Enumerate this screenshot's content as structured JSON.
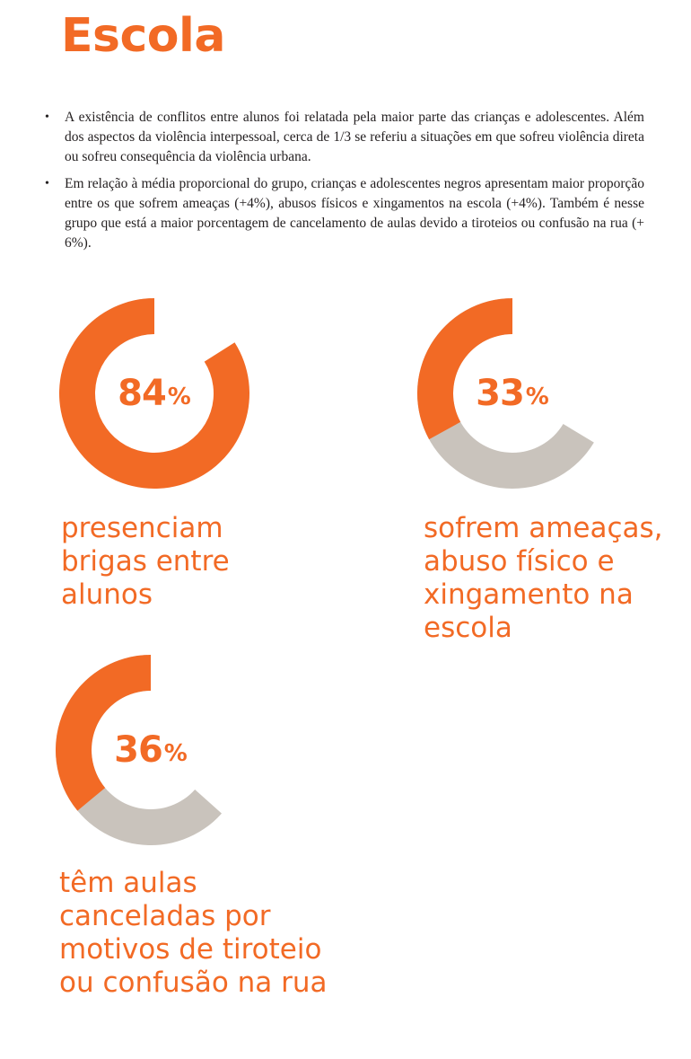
{
  "page": {
    "title": "Escola",
    "bullets": [
      "A existência de conflitos entre alunos foi relatada pela maior parte das crianças e adolescentes. Além dos aspectos da violência interpessoal, cerca de 1/3 se referiu a situações em que sofreu violência direta ou sofreu consequência da violência urbana.",
      "Em relação à média proporcional do grupo, crianças e adolescentes negros apresentam maior proporção entre os que sofrem ameaças (+4%), abusos físicos e xingamentos na escola (+4%). Também é nesse grupo que está a maior porcentagem de cancelamento de aulas devido a tiroteios ou confusão na rua (+ 6%)."
    ],
    "bullet_symbol": "•"
  },
  "colors": {
    "accent": "#f26a25",
    "track": "#c9c3bc",
    "text": "#231f20"
  },
  "chart_data": [
    {
      "type": "pie",
      "value": 84,
      "label": "84",
      "unit": "%",
      "caption": "presenciam brigas entre alunos"
    },
    {
      "type": "pie",
      "value": 33,
      "label": "33",
      "unit": "%",
      "caption": "sofrem ameaças, abuso físico e xingamento na escola"
    },
    {
      "type": "pie",
      "value": 36,
      "label": "36",
      "unit": "%",
      "caption": "têm aulas canceladas por motivos de tiroteio ou confusão na rua"
    }
  ]
}
